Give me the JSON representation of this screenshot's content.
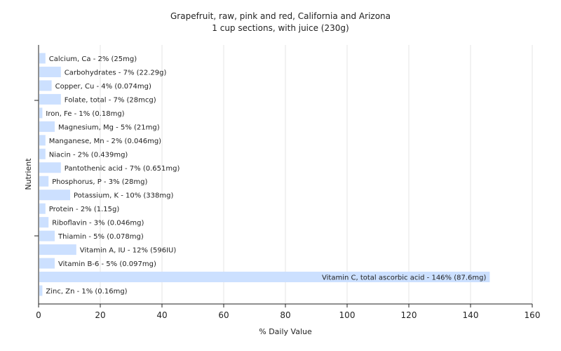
{
  "chart_data": {
    "type": "bar",
    "orientation": "horizontal",
    "title": "Grapefruit, raw, pink and red, California and Arizona",
    "subtitle": "1 cup sections, with juice (230g)",
    "xlabel": "% Daily Value",
    "ylabel": "Nutrient",
    "xlim": [
      0,
      160
    ],
    "xticks": [
      0,
      20,
      40,
      60,
      80,
      100,
      120,
      140,
      160
    ],
    "grid": true,
    "bar_color": "#cce0ff",
    "categories": [
      "Calcium, Ca",
      "Carbohydrates",
      "Copper, Cu",
      "Folate, total",
      "Iron, Fe",
      "Magnesium, Mg",
      "Manganese, Mn",
      "Niacin",
      "Pantothenic acid",
      "Phosphorus, P",
      "Potassium, K",
      "Protein",
      "Riboflavin",
      "Thiamin",
      "Vitamin A, IU",
      "Vitamin B-6",
      "Vitamin C, total ascorbic acid",
      "Zinc, Zn"
    ],
    "values": [
      2,
      7,
      4,
      7,
      1,
      5,
      2,
      2,
      7,
      3,
      10,
      2,
      3,
      5,
      12,
      5,
      146,
      1
    ],
    "labels": [
      "Calcium, Ca - 2% (25mg)",
      "Carbohydrates - 7% (22.29g)",
      "Copper, Cu - 4% (0.074mg)",
      "Folate, total - 7% (28mcg)",
      "Iron, Fe - 1% (0.18mg)",
      "Magnesium, Mg - 5% (21mg)",
      "Manganese, Mn - 2% (0.046mg)",
      "Niacin - 2% (0.439mg)",
      "Pantothenic acid - 7% (0.651mg)",
      "Phosphorus, P - 3% (28mg)",
      "Potassium, K - 10% (338mg)",
      "Protein - 2% (1.15g)",
      "Riboflavin - 3% (0.046mg)",
      "Thiamin - 5% (0.078mg)",
      "Vitamin A, IU - 12% (596IU)",
      "Vitamin B-6 - 5% (0.097mg)",
      "Vitamin C, total ascorbic acid - 146% (87.6mg)",
      "Zinc, Zn - 1% (0.16mg)"
    ]
  }
}
